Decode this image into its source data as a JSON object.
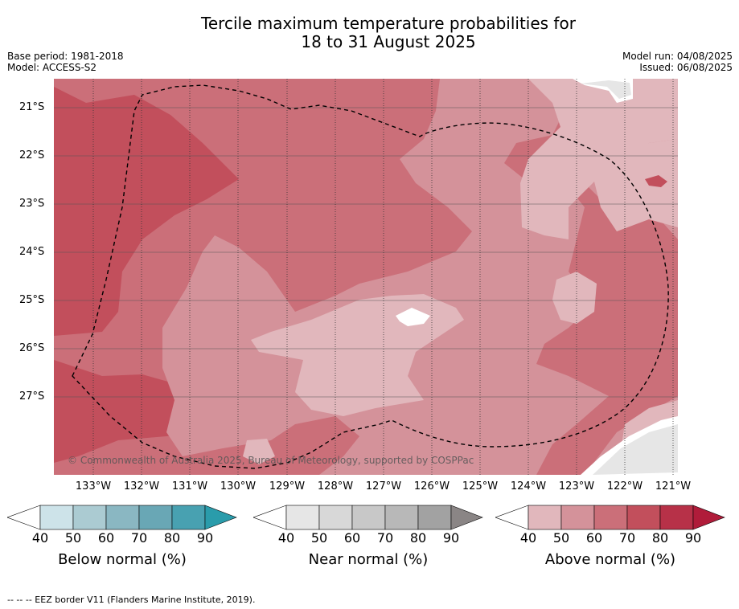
{
  "title_line1": "Tercile maximum temperature probabilities for",
  "title_line2": "18 to 31 August 2025",
  "base_period": "Base period: 1981-2018",
  "model": "Model: ACCESS-S2",
  "model_run": "Model run: 04/08/2025",
  "issued": "Issued: 06/08/2025",
  "copyright": "© Commonwealth of Australia 2025, Bureau of Meteorology, supported by COSPPac",
  "lat_labels": [
    "21°S",
    "22°S",
    "23°S",
    "24°S",
    "25°S",
    "26°S",
    "27°S"
  ],
  "lon_labels": [
    "133°W",
    "132°W",
    "131°W",
    "130°W",
    "129°W",
    "128°W",
    "127°W",
    "126°W",
    "125°W",
    "124°W",
    "123°W",
    "122°W",
    "121°W"
  ],
  "colorbars": {
    "below": {
      "label": "Below normal (%)",
      "ticks": [
        "40",
        "50",
        "60",
        "70",
        "80",
        "90"
      ],
      "colors": [
        "#cde3e9",
        "#abcbd2",
        "#8ab7c2",
        "#69a7b5",
        "#48a1b1"
      ],
      "arrow_color": "#2a9cab"
    },
    "near": {
      "label": "Near normal (%)",
      "ticks": [
        "40",
        "50",
        "60",
        "70",
        "80",
        "90"
      ],
      "colors": [
        "#e6e6e6",
        "#d8d8d8",
        "#c8c8c8",
        "#b8b8b8",
        "#a2a2a2"
      ],
      "arrow_color": "#8a8585"
    },
    "above": {
      "label": "Above normal (%)",
      "ticks": [
        "40",
        "50",
        "60",
        "70",
        "80",
        "90"
      ],
      "colors": [
        "#e1b7bc",
        "#d4929a",
        "#cb6f79",
        "#c24f5c",
        "#b73148"
      ],
      "arrow_color": "#b01c3a"
    }
  },
  "footer": "-- -- -- EEZ border V11 (Flanders Marine Institute, 2019).",
  "map_colors": {
    "p40": "#e1b7bc",
    "p50": "#d4929a",
    "p60": "#cb6f79",
    "p70": "#c24f5c",
    "land": "#e6e6e6"
  }
}
